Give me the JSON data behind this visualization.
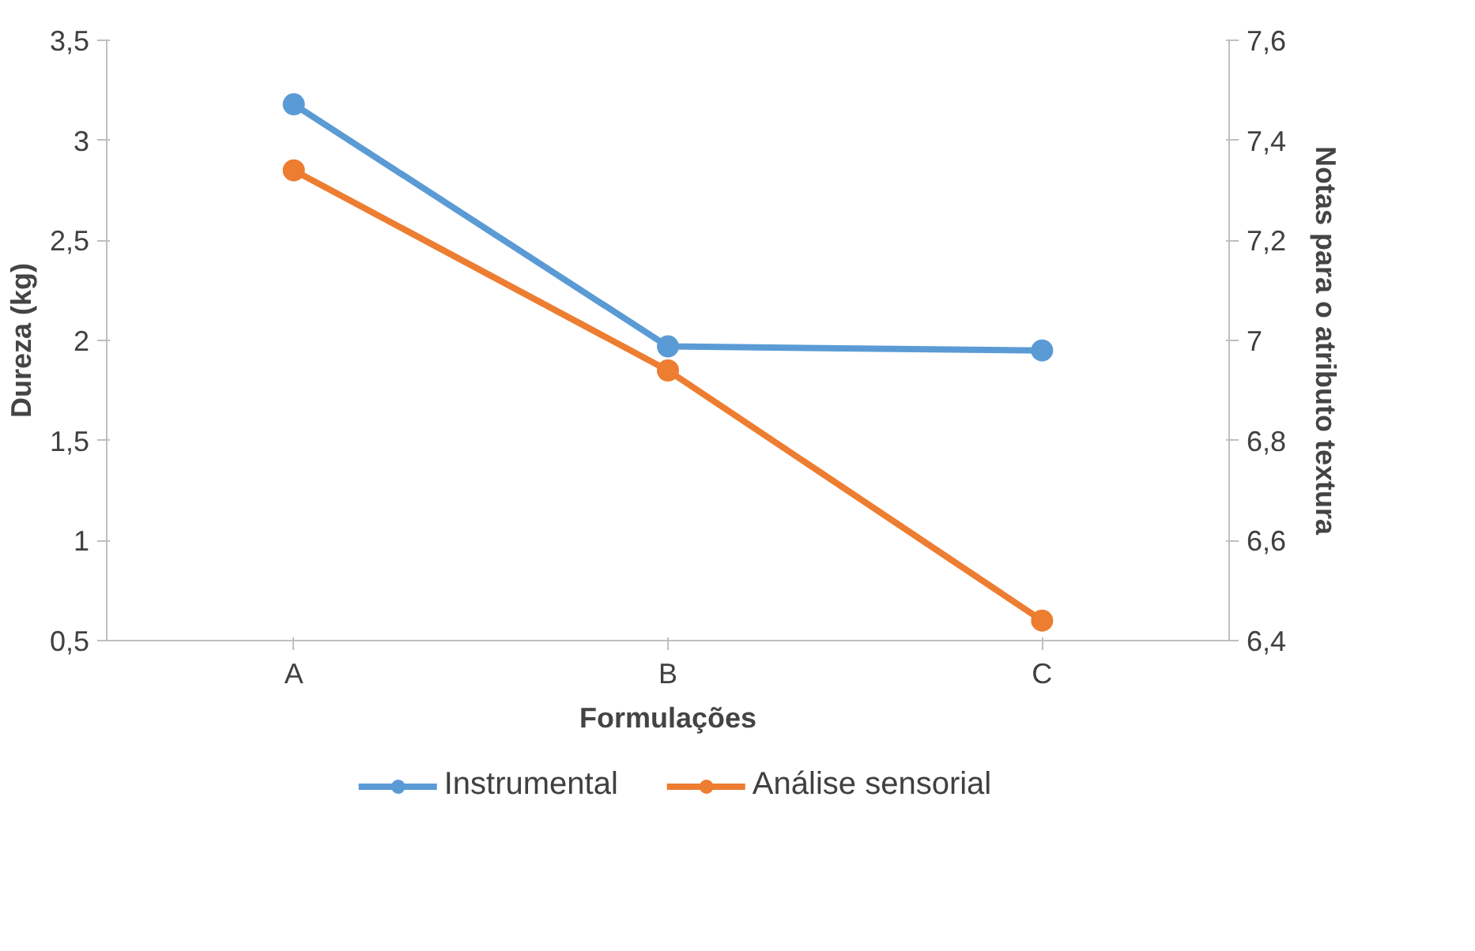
{
  "chart_data": {
    "type": "line",
    "xlabel": "Formulações",
    "ylabel": "Dureza (kg)",
    "y2label": "Notas para o atributo textura",
    "categories": [
      "A",
      "B",
      "C"
    ],
    "series": [
      {
        "name": "Instrumental",
        "color": "#5b9bd5",
        "values": [
          3.18,
          1.97,
          1.95
        ]
      },
      {
        "name": "Análise sensorial",
        "color": "#ed7d31",
        "values": [
          7.34,
          6.94,
          6.44
        ],
        "axis": "y2"
      }
    ],
    "ylim": [
      0.5,
      3.5
    ],
    "yticks": [
      {
        "value": 0.5,
        "label": "0,5"
      },
      1,
      {
        "value": 1.5,
        "label": "1,5"
      },
      2,
      {
        "value": 2.5,
        "label": "2,5"
      },
      3,
      {
        "value": 3.5,
        "label": "3,5"
      }
    ],
    "y2lim": [
      6.4,
      7.6
    ],
    "y2ticks": [
      {
        "value": 6.4,
        "label": "6,4"
      },
      {
        "value": 6.6,
        "label": "6,6"
      },
      {
        "value": 6.8,
        "label": "6,8"
      },
      7,
      {
        "value": 7.2,
        "label": "7,2"
      },
      {
        "value": 7.4,
        "label": "7,4"
      },
      {
        "value": 7.6,
        "label": "7,6"
      }
    ],
    "grid": false,
    "legend": "bottom",
    "marker": "circle",
    "line_style": "solid"
  }
}
